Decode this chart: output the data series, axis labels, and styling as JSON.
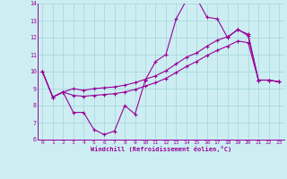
{
  "xlabel": "Windchill (Refroidissement éolien,°C)",
  "bg_color": "#cceef2",
  "grid_color": "#aad8de",
  "line_color": "#990099",
  "x_hours": [
    0,
    1,
    2,
    3,
    4,
    5,
    6,
    7,
    8,
    9,
    10,
    11,
    12,
    13,
    14,
    15,
    16,
    17,
    18,
    19,
    20,
    21,
    22,
    23
  ],
  "line1_y": [
    10.0,
    8.5,
    8.8,
    7.6,
    7.6,
    6.6,
    6.3,
    6.5,
    8.0,
    7.5,
    9.5,
    10.6,
    11.0,
    13.1,
    14.2,
    14.3,
    13.2,
    13.1,
    12.0,
    12.5,
    12.1,
    9.5,
    9.5,
    9.4
  ],
  "line2_y": [
    10.0,
    8.5,
    8.8,
    9.0,
    8.9,
    9.0,
    9.05,
    9.1,
    9.2,
    9.35,
    9.55,
    9.75,
    10.05,
    10.45,
    10.85,
    11.1,
    11.5,
    11.85,
    12.05,
    12.45,
    12.2,
    9.5,
    9.5,
    9.4
  ],
  "line3_y": [
    10.0,
    8.5,
    8.8,
    8.6,
    8.55,
    8.6,
    8.65,
    8.7,
    8.8,
    8.95,
    9.15,
    9.35,
    9.6,
    9.95,
    10.3,
    10.6,
    10.95,
    11.25,
    11.5,
    11.8,
    11.7,
    9.5,
    9.5,
    9.4
  ],
  "ylim": [
    6,
    14
  ],
  "xlim": [
    -0.5,
    23.5
  ],
  "yticks": [
    6,
    7,
    8,
    9,
    10,
    11,
    12,
    13,
    14
  ],
  "xticks": [
    0,
    1,
    2,
    3,
    4,
    5,
    6,
    7,
    8,
    9,
    10,
    11,
    12,
    13,
    14,
    15,
    16,
    17,
    18,
    19,
    20,
    21,
    22,
    23
  ]
}
